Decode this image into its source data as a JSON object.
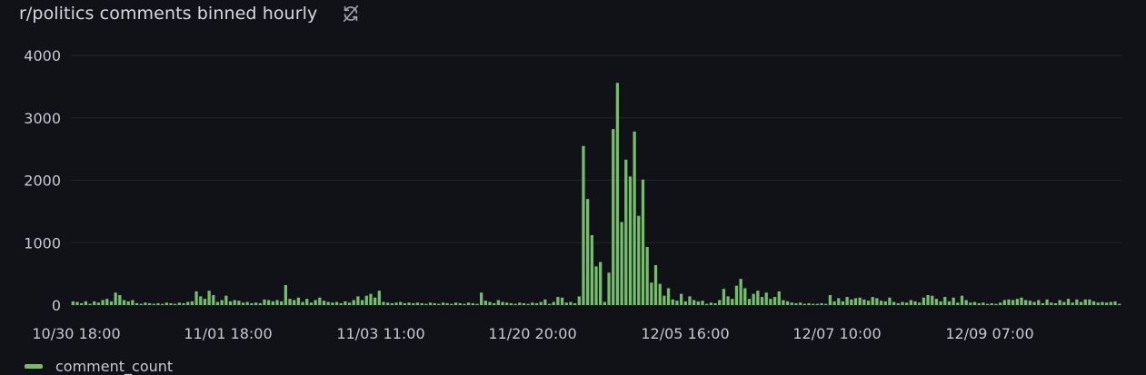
{
  "panel": {
    "title": "r/politics comments binned hourly",
    "icon": "refresh-off-icon"
  },
  "chart_data": {
    "type": "bar",
    "title": "r/politics comments binned hourly",
    "xlabel": "",
    "ylabel": "",
    "ylim": [
      0,
      4000
    ],
    "yticks": [
      "0",
      "1000",
      "2000",
      "3000",
      "4000"
    ],
    "xticks": [
      "10/30 18:00",
      "11/01 18:00",
      "11/03 11:00",
      "11/20 20:00",
      "12/05 16:00",
      "12/07 10:00",
      "12/09 07:00"
    ],
    "grid": true,
    "legend": "bottom-left",
    "color": "#73bf69",
    "series": [
      {
        "name": "comment_count",
        "values": [
          60,
          50,
          30,
          60,
          20,
          60,
          40,
          80,
          100,
          60,
          200,
          160,
          80,
          60,
          80,
          30,
          20,
          40,
          30,
          20,
          30,
          20,
          40,
          30,
          20,
          40,
          30,
          50,
          60,
          220,
          140,
          100,
          230,
          160,
          50,
          80,
          150,
          60,
          80,
          70,
          40,
          50,
          30,
          40,
          30,
          90,
          80,
          60,
          80,
          60,
          320,
          100,
          80,
          120,
          50,
          100,
          40,
          80,
          120,
          70,
          50,
          40,
          50,
          30,
          60,
          40,
          80,
          140,
          80,
          150,
          180,
          120,
          230,
          50,
          40,
          30,
          40,
          50,
          30,
          40,
          30,
          40,
          30,
          20,
          40,
          30,
          20,
          40,
          30,
          20,
          40,
          30,
          20,
          40,
          30,
          20,
          200,
          70,
          50,
          30,
          80,
          50,
          40,
          30,
          20,
          40,
          30,
          20,
          40,
          30,
          50,
          90,
          20,
          50,
          130,
          120,
          40,
          50,
          30,
          140,
          2550,
          1700,
          1120,
          620,
          690,
          50,
          520,
          2820,
          3560,
          1330,
          2330,
          2060,
          2780,
          1430,
          2010,
          930,
          360,
          640,
          340,
          150,
          270,
          90,
          70,
          180,
          60,
          140,
          80,
          60,
          70,
          20,
          40,
          30,
          80,
          260,
          140,
          100,
          310,
          420,
          270,
          100,
          180,
          230,
          130,
          200,
          100,
          130,
          220,
          80,
          60,
          40,
          30,
          40,
          20,
          30,
          20,
          20,
          30,
          20,
          160,
          60,
          110,
          60,
          130,
          90,
          110,
          120,
          90,
          70,
          130,
          110,
          70,
          60,
          120,
          50,
          30,
          50,
          40,
          80,
          60,
          40,
          120,
          160,
          150,
          100,
          60,
          130,
          60,
          120,
          40,
          150,
          80,
          40,
          50,
          30,
          40,
          20,
          30,
          20,
          40,
          80,
          90,
          80,
          100,
          120,
          80,
          70,
          50,
          80,
          30,
          90,
          40,
          30,
          80,
          50,
          100,
          40,
          90,
          50,
          90,
          90,
          60,
          40,
          50,
          40,
          50,
          60,
          20
        ]
      }
    ]
  }
}
